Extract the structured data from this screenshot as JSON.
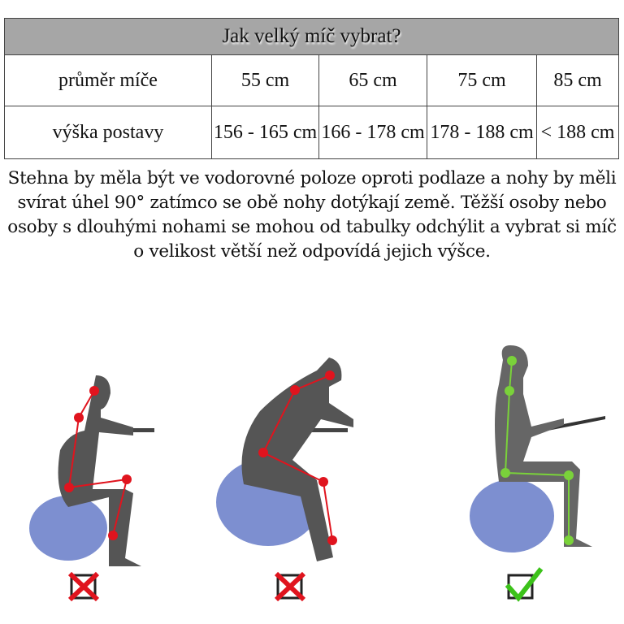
{
  "table": {
    "title": "Jak velký míč vybrat?",
    "row1": {
      "label": "průměr míče",
      "cells": [
        "55 cm",
        "65 cm",
        "75 cm",
        "85 cm"
      ]
    },
    "row2": {
      "label": "výška postavy",
      "cells": [
        "156 - 165 cm",
        "166 - 178 cm",
        "178 - 188 cm",
        "< 188 cm"
      ]
    }
  },
  "description": "Stehna by měla být ve vodorovné poloze oproti podlaze a nohy by měli svírat úhel 90° zatímco se obě nohy dotýkají země. Těžší osoby nebo osoby s dlouhými nohami se mohou od tabulky odchýlit a vybrat si míč o velikost větší než odpovídá jejich výšce.",
  "figures": [
    {
      "status": "wrong",
      "mark": "x-box-icon",
      "joint_color": "#e0141e"
    },
    {
      "status": "wrong",
      "mark": "x-box-icon",
      "joint_color": "#e0141e"
    },
    {
      "status": "correct",
      "mark": "check-box-icon",
      "joint_color": "#7ad23a"
    }
  ],
  "colors": {
    "ball": "#7d8fd0",
    "figure": "#555555",
    "header": "#a6a6a6"
  }
}
